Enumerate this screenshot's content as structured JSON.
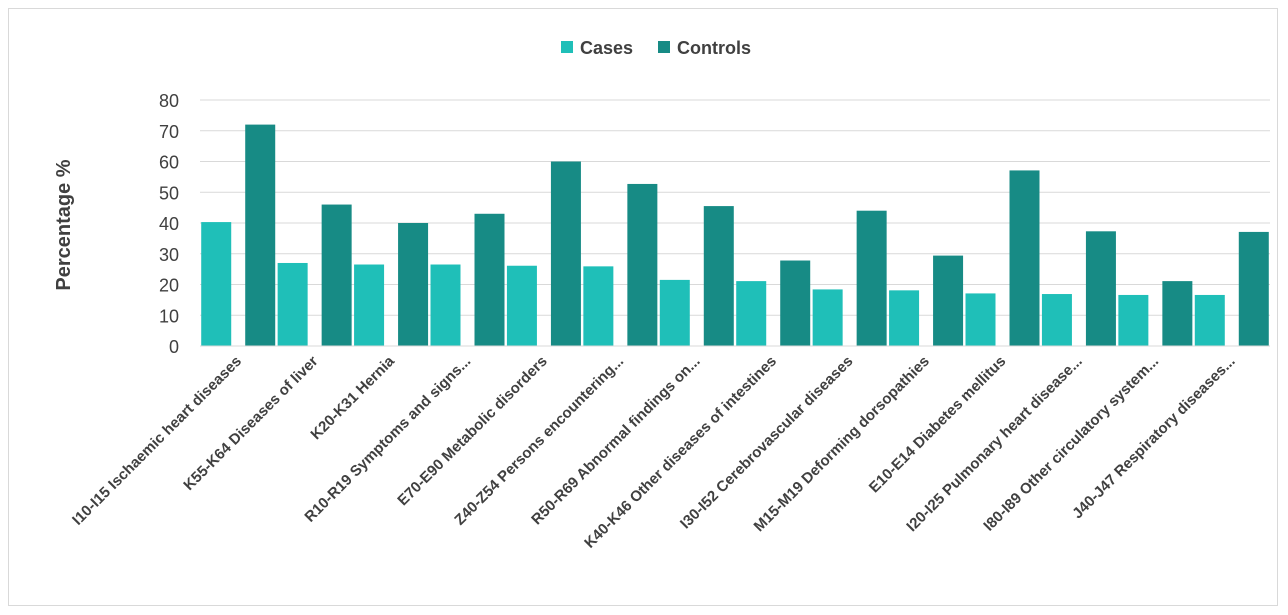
{
  "chart_data": {
    "type": "bar",
    "ylabel": "Percentage %",
    "ylim": [
      0,
      80
    ],
    "yticks": [
      0,
      10,
      20,
      30,
      40,
      50,
      60,
      70,
      80
    ],
    "grid": true,
    "legend_position": "top-center",
    "categories": [
      "I10-I15 Ischaemic heart diseases",
      "K55-K64 Diseases of liver",
      "K20-K31 Hernia",
      "R10-R19 Symptoms and signs...",
      "E70-E90 Metabolic disorders",
      "Z40-Z54 Persons encountering...",
      "R50-R69 Abnormal findings on...",
      "K40-K46 Other diseases of intestines",
      "I30-I52 Cerebrovascular diseases",
      "M15-M19 Deforming dorsopathies",
      "E10-E14 Diabetes mellitus",
      "I20-I25 Pulmonary heart disease...",
      "I80-I89 Other circulatory system...",
      "J40-J47 Respiratory diseases..."
    ],
    "series": [
      {
        "name": "Cases",
        "color": "#1fbfb8",
        "values": [
          40.3,
          27.0,
          26.5,
          26.5,
          26.1,
          25.9,
          21.5,
          21.1,
          18.4,
          18.1,
          17.1,
          16.9,
          16.6,
          16.6
        ]
      },
      {
        "name": "Controls",
        "color": "#178b85",
        "values": [
          72.0,
          46.0,
          40.0,
          43.0,
          60.0,
          52.7,
          45.5,
          27.8,
          44.0,
          29.4,
          57.1,
          37.3,
          21.1,
          37.1
        ]
      }
    ]
  }
}
